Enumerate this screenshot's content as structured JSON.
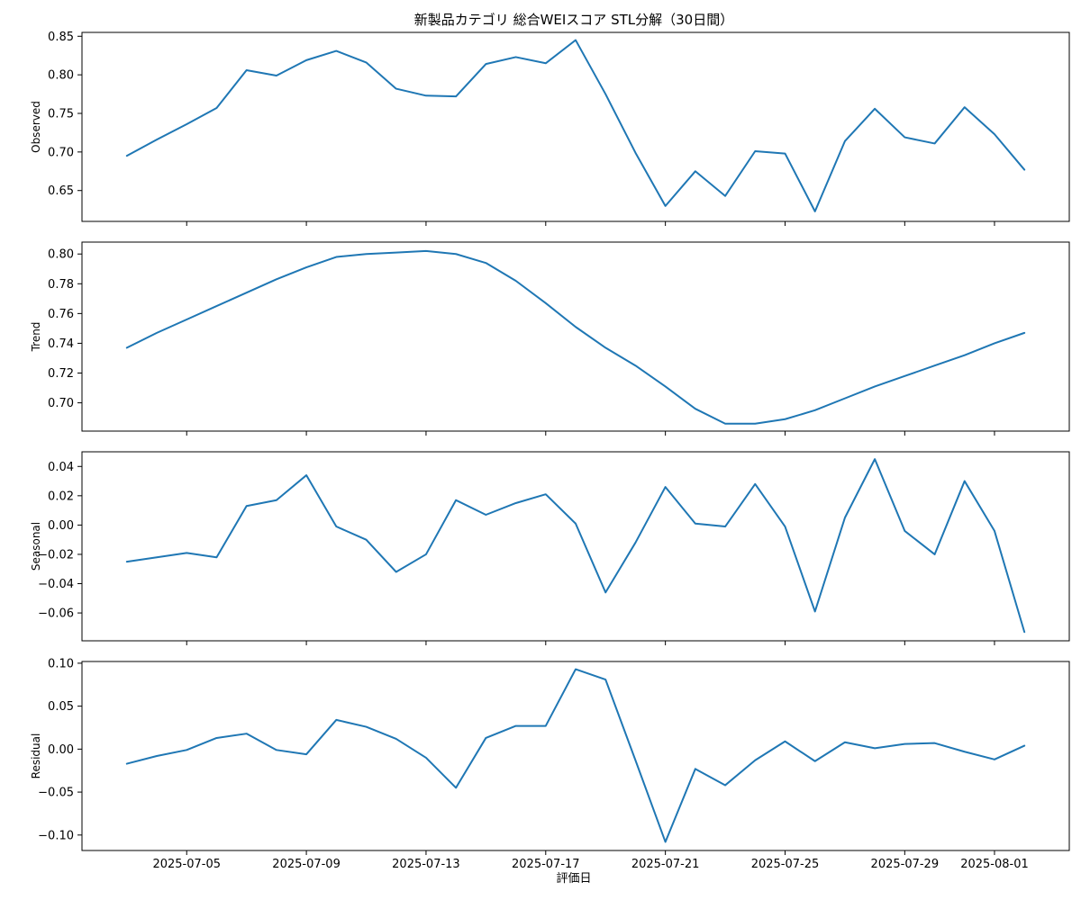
{
  "chart_data": {
    "type": "line",
    "title": "新製品カテゴリ 総合WEIスコア STL分解（30日間）",
    "xlabel": "評価日",
    "x": [
      "2025-07-03",
      "2025-07-04",
      "2025-07-05",
      "2025-07-06",
      "2025-07-07",
      "2025-07-08",
      "2025-07-09",
      "2025-07-10",
      "2025-07-11",
      "2025-07-12",
      "2025-07-13",
      "2025-07-14",
      "2025-07-15",
      "2025-07-16",
      "2025-07-17",
      "2025-07-18",
      "2025-07-19",
      "2025-07-20",
      "2025-07-21",
      "2025-07-22",
      "2025-07-23",
      "2025-07-24",
      "2025-07-25",
      "2025-07-26",
      "2025-07-27",
      "2025-07-28",
      "2025-07-29",
      "2025-07-30",
      "2025-07-31",
      "2025-08-01",
      "2025-08-02"
    ],
    "xticks": [
      "2025-07-05",
      "2025-07-09",
      "2025-07-13",
      "2025-07-17",
      "2025-07-21",
      "2025-07-25",
      "2025-07-29",
      "2025-08-01"
    ],
    "panels": [
      {
        "ylabel": "Observed",
        "ylim": [
          0.61,
          0.855
        ],
        "yticks": [
          0.65,
          0.7,
          0.75,
          0.8,
          0.85
        ],
        "ytick_labels": [
          "0.65",
          "0.70",
          "0.75",
          "0.80",
          "0.85"
        ],
        "values": [
          0.695,
          0.716,
          0.736,
          0.757,
          0.806,
          0.799,
          0.819,
          0.831,
          0.816,
          0.782,
          0.773,
          0.772,
          0.814,
          0.823,
          0.815,
          0.845,
          0.775,
          0.699,
          0.63,
          0.675,
          0.643,
          0.701,
          0.698,
          0.623,
          0.714,
          0.756,
          0.719,
          0.711,
          0.758,
          0.723,
          0.677
        ]
      },
      {
        "ylabel": "Trend",
        "ylim": [
          0.681,
          0.808
        ],
        "yticks": [
          0.7,
          0.72,
          0.74,
          0.76,
          0.78,
          0.8
        ],
        "ytick_labels": [
          "0.70",
          "0.72",
          "0.74",
          "0.76",
          "0.78",
          "0.80"
        ],
        "values": [
          0.737,
          0.747,
          0.756,
          0.765,
          0.774,
          0.783,
          0.791,
          0.798,
          0.8,
          0.801,
          0.802,
          0.8,
          0.794,
          0.782,
          0.767,
          0.751,
          0.737,
          0.725,
          0.711,
          0.696,
          0.686,
          0.686,
          0.689,
          0.695,
          0.703,
          0.711,
          0.718,
          0.725,
          0.732,
          0.74,
          0.747
        ]
      },
      {
        "ylabel": "Seasonal",
        "ylim": [
          -0.079,
          0.05
        ],
        "yticks": [
          -0.06,
          -0.04,
          -0.02,
          0.0,
          0.02,
          0.04
        ],
        "ytick_labels": [
          "−0.06",
          "−0.04",
          "−0.02",
          "0.00",
          "0.02",
          "0.04"
        ],
        "values": [
          -0.025,
          -0.022,
          -0.019,
          -0.022,
          0.013,
          0.017,
          0.034,
          -0.001,
          -0.01,
          -0.032,
          -0.02,
          0.017,
          0.007,
          0.015,
          0.021,
          0.001,
          -0.046,
          -0.012,
          0.026,
          0.001,
          -0.001,
          0.028,
          -0.001,
          -0.059,
          0.005,
          0.045,
          -0.004,
          -0.02,
          0.03,
          -0.004,
          -0.073
        ]
      },
      {
        "ylabel": "Residual",
        "ylim": [
          -0.118,
          0.102
        ],
        "yticks": [
          -0.1,
          -0.05,
          0.0,
          0.05,
          0.1
        ],
        "ytick_labels": [
          "−0.10",
          "−0.05",
          "0.00",
          "0.05",
          "0.10"
        ],
        "values": [
          -0.017,
          -0.008,
          -0.001,
          0.013,
          0.018,
          -0.001,
          -0.006,
          0.034,
          0.026,
          0.012,
          -0.01,
          -0.045,
          0.013,
          0.027,
          0.027,
          0.093,
          0.081,
          -0.013,
          -0.108,
          -0.023,
          -0.042,
          -0.013,
          0.009,
          -0.014,
          0.008,
          0.001,
          0.006,
          0.007,
          -0.003,
          -0.012,
          0.004
        ]
      }
    ],
    "grid": false,
    "colors": {
      "series": "#1f77b4"
    }
  }
}
